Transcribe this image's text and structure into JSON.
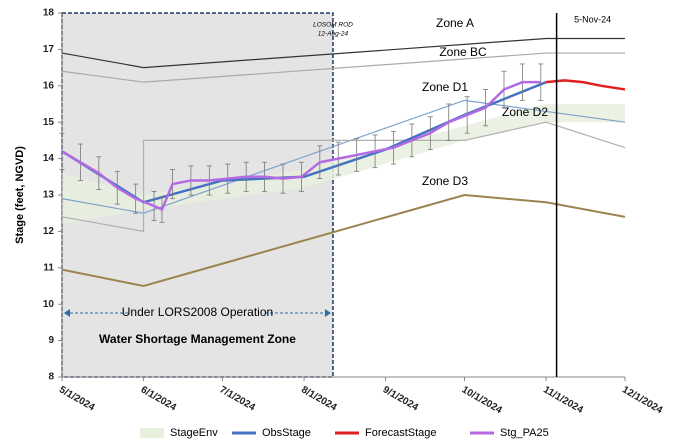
{
  "chart_data": {
    "type": "line",
    "y_label": "Stage (feet, NGVD)",
    "ylim": [
      8,
      18
    ],
    "yticks": [
      8,
      9,
      10,
      11,
      12,
      13,
      14,
      15,
      16,
      17,
      18
    ],
    "xlim": [
      "5/1/2024",
      "12/1/2024"
    ],
    "xticks": [
      "5/1/2024",
      "6/1/2024",
      "7/1/2024",
      "8/1/2024",
      "9/1/2024",
      "10/1/2024",
      "11/1/2024",
      "12/1/2024"
    ],
    "zones": [
      {
        "label": "Zone A",
        "color": "#333333",
        "x": [
          "5/1/2024",
          "6/1/2024",
          "11/1/2024",
          "12/1/2024"
        ],
        "values": [
          16.9,
          16.5,
          17.3,
          17.3
        ]
      },
      {
        "label": "Zone BC",
        "color": "#aaaaaa",
        "x": [
          "5/1/2024",
          "6/1/2024",
          "11/1/2024",
          "12/1/2024"
        ],
        "values": [
          16.4,
          16.1,
          16.9,
          16.9
        ]
      },
      {
        "label": "Zone D1",
        "color": "#7fa3cc",
        "x": [
          "5/1/2024",
          "6/1/2024",
          "10/1/2024",
          "12/1/2024"
        ],
        "values": [
          12.9,
          12.5,
          15.6,
          15.0
        ]
      },
      {
        "label": "Zone D2",
        "color": "#b0b0b0",
        "x": [
          "5/1/2024",
          "6/1/2024",
          "6/1/2024",
          "10/1/2024",
          "11/1/2024",
          "12/1/2024"
        ],
        "values": [
          12.4,
          12.0,
          14.5,
          14.5,
          15.0,
          14.3
        ]
      },
      {
        "label": "Zone D3",
        "color": "#9c8450",
        "x": [
          "5/1/2024",
          "6/1/2024",
          "10/1/2024",
          "11/1/2024",
          "12/1/2024"
        ],
        "values": [
          10.95,
          10.5,
          13.0,
          12.8,
          12.4
        ]
      }
    ],
    "series": [
      {
        "name": "StageEnv",
        "color": "#e8f0de",
        "x": [
          "5/1/2024",
          "6/1/2024",
          "8/1/2024",
          "10/1/2024",
          "11/1/2024",
          "12/1/2024"
        ],
        "upper": [
          13.6,
          13.0,
          13.7,
          14.9,
          15.5,
          15.5
        ],
        "lower": [
          12.2,
          12.6,
          13.2,
          14.5,
          15.0,
          15.0
        ]
      },
      {
        "name": "ObsStage",
        "color": "#4472c4",
        "x": [
          "5/1/2024",
          "6/1/2024",
          "7/1/2024",
          "8/1/2024",
          "9/1/2024",
          "10/1/2024",
          "11/1/2024"
        ],
        "values": [
          14.2,
          12.8,
          13.4,
          13.5,
          14.25,
          15.2,
          16.1
        ]
      },
      {
        "name": "ForecastStage",
        "color": "#e02020",
        "x": [
          "11/1/2024",
          "11/8/2024",
          "11/15/2024",
          "11/22/2024",
          "12/1/2024"
        ],
        "values": [
          16.1,
          16.15,
          16.1,
          16.0,
          15.9
        ]
      },
      {
        "name": "Stg_PA25",
        "color": "#b36ae2",
        "x": [
          "5/1/2024",
          "5/8/2024",
          "5/15/2024",
          "5/22/2024",
          "5/29/2024",
          "6/5/2024",
          "6/8/2024",
          "6/12/2024",
          "6/19/2024",
          "6/26/2024",
          "7/3/2024",
          "7/10/2024",
          "7/17/2024",
          "7/24/2024",
          "7/31/2024",
          "8/7/2024",
          "8/14/2024",
          "8/21/2024",
          "8/28/2024",
          "9/4/2024",
          "9/11/2024",
          "9/18/2024",
          "9/25/2024",
          "10/2/2024",
          "10/9/2024",
          "10/16/2024",
          "10/23/2024",
          "10/30/2024"
        ],
        "values": [
          14.2,
          13.9,
          13.6,
          13.2,
          12.9,
          12.7,
          12.6,
          13.3,
          13.4,
          13.4,
          13.45,
          13.5,
          13.5,
          13.45,
          13.5,
          13.9,
          14.0,
          14.1,
          14.2,
          14.3,
          14.5,
          14.7,
          15.0,
          15.2,
          15.4,
          15.9,
          16.1,
          16.1
        ],
        "errors": [
          0.5,
          0.5,
          0.45,
          0.45,
          0.4,
          0.4,
          0.35,
          0.4,
          0.4,
          0.4,
          0.4,
          0.4,
          0.4,
          0.4,
          0.4,
          0.45,
          0.45,
          0.45,
          0.45,
          0.45,
          0.45,
          0.45,
          0.5,
          0.5,
          0.5,
          0.5,
          0.5,
          0.5
        ]
      }
    ],
    "rod_label": "LOSOM ROD",
    "rod_date": "12-Aug-24",
    "now_date": "5-Nov-24",
    "operation_label": "Under LORS2008 Operation",
    "shortage_label": "Water Shortage Management Zone"
  }
}
